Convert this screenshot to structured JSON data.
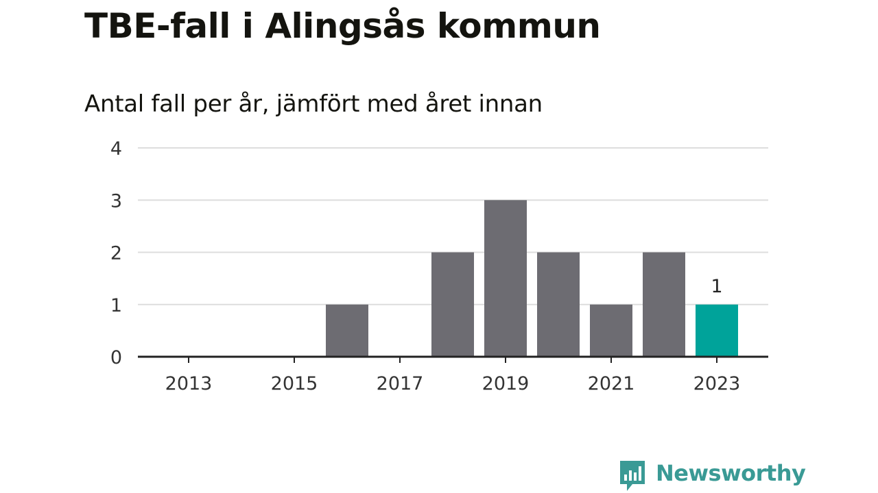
{
  "colors": {
    "bar": "#6d6c72",
    "highlight_bar": "#00a39a",
    "grid": "#dddddd",
    "axis": "#222222",
    "logo": "#3a9a95"
  },
  "brand": {
    "name": "Newsworthy",
    "icon": "bar-chart-speech-bubble-icon"
  },
  "chart_data": {
    "type": "bar",
    "title": "TBE-fall i Alingsås kommun",
    "subtitle": "Antal fall per år, jämfört med året innan",
    "xlabel": "",
    "ylabel": "",
    "categories": [
      "2013",
      "2014",
      "2015",
      "2016",
      "2017",
      "2018",
      "2019",
      "2020",
      "2021",
      "2022",
      "2023"
    ],
    "values": [
      0,
      0,
      0,
      1,
      0,
      2,
      3,
      2,
      1,
      2,
      1
    ],
    "highlight": "2023",
    "highlight_label": "1",
    "ylim": [
      0,
      4
    ],
    "yticks": [
      "0",
      "1",
      "2",
      "3",
      "4"
    ],
    "xticks": [
      "2013",
      "2015",
      "2017",
      "2019",
      "2021",
      "2023"
    ],
    "grid": true,
    "legend": "none"
  }
}
